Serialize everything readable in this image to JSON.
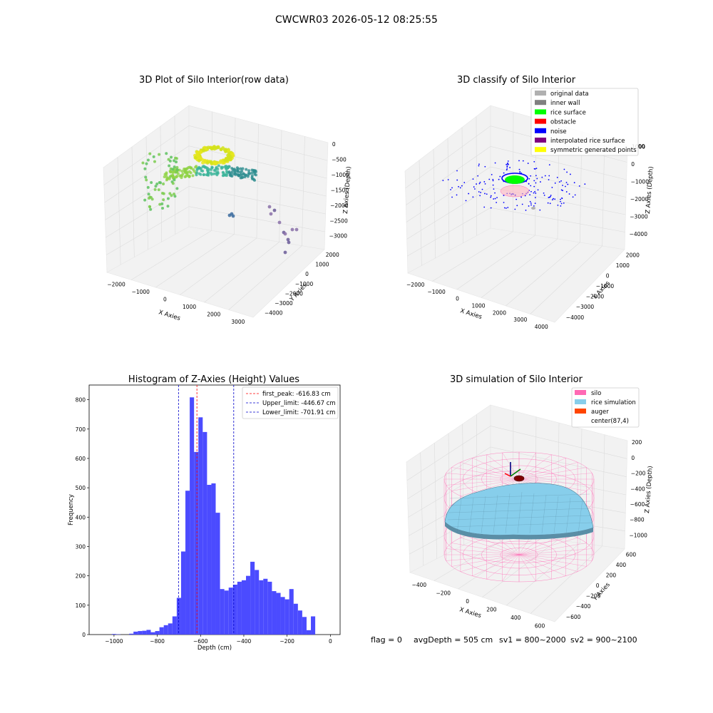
{
  "figure_title": "CWCWR03 2026-05-12 08:25:55",
  "status_line": {
    "flag": "flag = 0",
    "avg_depth": "avgDepth = 505 cm",
    "sv1": "sv1 = 800~2000",
    "sv2": "sv2 = 900~2100"
  },
  "chart_data": [
    {
      "type": "scatter",
      "title": "3D Plot of Silo Interior(row data)",
      "xlabel": "X Axies",
      "ylabel": "Y Axies",
      "zlabel": "Z Axies (Depth)",
      "x_ticks": [
        "−2000",
        "−1000",
        "0",
        "1000",
        "2000",
        "3000"
      ],
      "y_ticks": [
        "2000",
        "1000",
        "0",
        "−1000",
        "−2000",
        "−3000",
        "−4000"
      ],
      "z_ticks": [
        "0",
        "−500",
        "−1000",
        "−1500",
        "−2000",
        "−2500",
        "−3000"
      ],
      "grid": true
    },
    {
      "type": "scatter",
      "title": "3D classify of Silo Interior",
      "xlabel": "X Axies",
      "ylabel": "Y Axies",
      "zlabel": "Z Axies (Depth)",
      "x_ticks": [
        "−2000",
        "−1000",
        "0",
        "1000",
        "2000",
        "3000",
        "4000"
      ],
      "y_ticks": [
        "2000",
        "1000",
        "0",
        "−1000",
        "−2000",
        "−3000",
        "−4000"
      ],
      "z_ticks": [
        "1000",
        "0",
        "−1000",
        "−2000",
        "−3000",
        "−4000"
      ],
      "z_top_fragment": "00",
      "legend": [
        {
          "label": "original data",
          "color": "#b0b0b0"
        },
        {
          "label": "inner wall",
          "color": "#808080"
        },
        {
          "label": "rice surface",
          "color": "#00ff00"
        },
        {
          "label": "obstacle",
          "color": "#ff0000"
        },
        {
          "label": "noise",
          "color": "#0000ff"
        },
        {
          "label": "interpolated rice surface",
          "color": "#800080"
        },
        {
          "label": "symmetric generated points",
          "color": "#ffff00"
        }
      ],
      "legend_position": "top-right",
      "grid": true
    },
    {
      "type": "bar",
      "title": "Histogram of Z-Axies (Height) Values",
      "xlabel": "Depth (cm)",
      "ylabel": "Frequency",
      "xlim": [
        -1115,
        45
      ],
      "ylim": [
        0,
        850
      ],
      "x_ticks": [
        -1000,
        -800,
        -600,
        -400,
        -200,
        0
      ],
      "y_ticks": [
        0,
        100,
        200,
        300,
        400,
        500,
        600,
        700,
        800
      ],
      "bin_width": 20,
      "bins_start": [
        -1000,
        -980,
        -960,
        -940,
        -920,
        -900,
        -880,
        -860,
        -840,
        -820,
        -800,
        -780,
        -760,
        -740,
        -720,
        -700,
        -680,
        -660,
        -640,
        -620,
        -600,
        -580,
        -560,
        -540,
        -520,
        -500,
        -480,
        -460,
        -440,
        -420,
        -400,
        -380,
        -360,
        -340,
        -320,
        -300,
        -280,
        -260,
        -240,
        -220,
        -200,
        -180,
        -160,
        -140,
        -120,
        -100,
        -80,
        -60,
        -40,
        -20
      ],
      "values": [
        2,
        1,
        0,
        0,
        3,
        10,
        12,
        13,
        16,
        8,
        12,
        25,
        32,
        38,
        62,
        125,
        283,
        490,
        808,
        622,
        740,
        690,
        510,
        515,
        415,
        155,
        150,
        160,
        170,
        180,
        185,
        200,
        248,
        220,
        185,
        190,
        180,
        148,
        142,
        128,
        120,
        155,
        105,
        82,
        60,
        15,
        62,
        0,
        0,
        0
      ],
      "bar_color": "#4b4bff",
      "lines": [
        {
          "label": "first_peak: -616.83 cm",
          "x": -616.83,
          "color": "#ff0000"
        },
        {
          "label": "Upper_limit: -446.67 cm",
          "x": -446.67,
          "color": "#0000cc"
        },
        {
          "label": "Lower_limit: -701.91 cm",
          "x": -701.91,
          "color": "#0000cc"
        }
      ],
      "legend_position": "top-right"
    },
    {
      "type": "surface",
      "title": "3D simulation of Silo Interior",
      "xlabel": "X Axies",
      "ylabel": "Y Axies",
      "zlabel": "Z Axies (Depth)",
      "x_ticks": [
        "−400",
        "−200",
        "0",
        "200",
        "400",
        "600"
      ],
      "y_ticks": [
        "600",
        "400",
        "200",
        "0",
        "−200",
        "−400",
        "−600"
      ],
      "z_ticks": [
        "200",
        "0",
        "−200",
        "−400",
        "−600",
        "−800",
        "−1000"
      ],
      "legend": [
        {
          "label": "silo",
          "color": "#ff69b4"
        },
        {
          "label": "rice simulation",
          "color": "#87ceeb"
        },
        {
          "label": "auger",
          "color": "#ff4500"
        },
        {
          "label": "center(87,4)",
          "color": ""
        }
      ],
      "legend_position": "top-right",
      "grid": true
    }
  ]
}
